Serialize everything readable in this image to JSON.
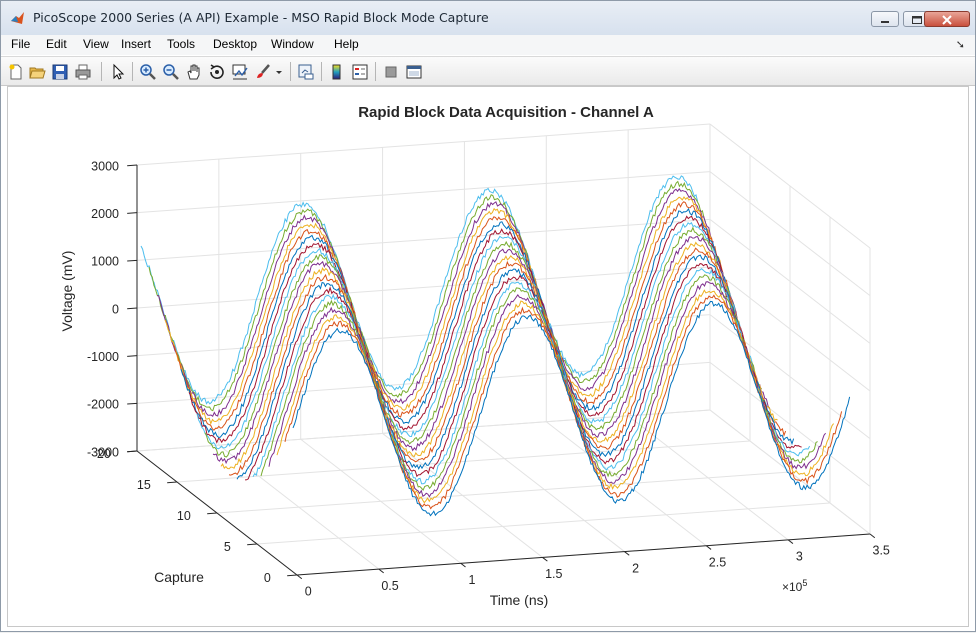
{
  "window": {
    "title": "PicoScope 2000 Series (A API) Example - MSO Rapid Block Mode Capture"
  },
  "menu": {
    "items": [
      "File",
      "Edit",
      "View",
      "Insert",
      "Tools",
      "Desktop",
      "Window",
      "Help"
    ]
  },
  "toolbar": {
    "icons": [
      "new-figure-icon",
      "open-file-icon",
      "save-icon",
      "print-icon",
      "pointer-icon",
      "zoom-in-icon",
      "zoom-out-icon",
      "pan-icon",
      "rotate-3d-icon",
      "data-cursor-icon",
      "brush-icon",
      "link-plot-icon",
      "colorbar-icon",
      "legend-icon",
      "hide-plot-tools-icon",
      "show-plot-tools-icon"
    ]
  },
  "chart_data": {
    "type": "line",
    "title": "Rapid Block Data Acquisition - Channel A",
    "xlabel": "Time (ns)",
    "ylabel": "Capture",
    "zlabel": "Voltage (mV)",
    "x_exponent_label": "×10",
    "x_exponent_power": "5",
    "xlim": [
      0,
      350000
    ],
    "ylim": [
      0,
      20
    ],
    "zlim": [
      -3000,
      3000
    ],
    "x_ticks": [
      0,
      0.5,
      1,
      1.5,
      2,
      2.5,
      3,
      3.5
    ],
    "x_tick_labels": [
      "0",
      "0.5",
      "1",
      "1.5",
      "2",
      "2.5",
      "3",
      "3.5"
    ],
    "y_ticks": [
      0,
      5,
      10,
      15,
      20
    ],
    "y_tick_labels": [
      "0",
      "5",
      "10",
      "15",
      "20"
    ],
    "z_ticks": [
      -3000,
      -2000,
      -1000,
      0,
      1000,
      2000,
      3000
    ],
    "z_tick_labels": [
      "-3000",
      "-2000",
      "-1000",
      "0",
      "1000",
      "2000",
      "3000"
    ],
    "grid": true,
    "series_count": 20,
    "waveform": {
      "shape": "sine",
      "amplitude_mV": 2000,
      "period_ns": 114000,
      "phase_step_ns_per_capture": 3700,
      "x_start_ns": 0,
      "x_end_ns": 340000
    },
    "series_colors": [
      "#0072bd",
      "#d95319",
      "#edb120",
      "#7e2f8e",
      "#77ac30",
      "#4dbeee",
      "#a2142f"
    ]
  }
}
